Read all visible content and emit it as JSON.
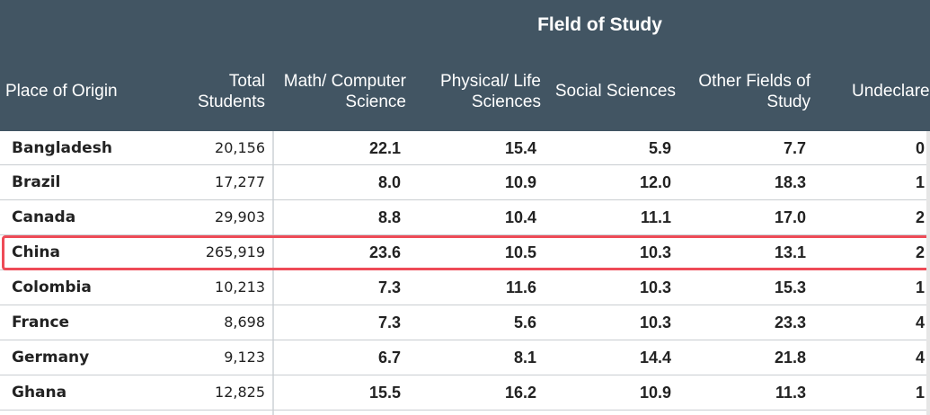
{
  "table": {
    "group_header": "Fleld of Study",
    "columns": [
      "Place of Origin",
      "Total\nStudents",
      "Math/ Computer\nScience",
      "Physical/ Life\nSciences",
      "Social Sciences",
      "Other Fields of\nStudy",
      "Undeclare"
    ],
    "rows": [
      {
        "origin": "Bangladesh",
        "total": "20,156",
        "math": "22.1",
        "physical": "15.4",
        "social": "5.9",
        "other": "7.7",
        "undeclared": "0"
      },
      {
        "origin": "Brazil",
        "total": "17,277",
        "math": "8.0",
        "physical": "10.9",
        "social": "12.0",
        "other": "18.3",
        "undeclared": "1"
      },
      {
        "origin": "Canada",
        "total": "29,903",
        "math": "8.8",
        "physical": "10.4",
        "social": "11.1",
        "other": "17.0",
        "undeclared": "2"
      },
      {
        "origin": "China",
        "total": "265,919",
        "math": "23.6",
        "physical": "10.5",
        "social": "10.3",
        "other": "13.1",
        "undeclared": "2"
      },
      {
        "origin": "Colombia",
        "total": "10,213",
        "math": "7.3",
        "physical": "11.6",
        "social": "10.3",
        "other": "15.3",
        "undeclared": "1"
      },
      {
        "origin": "France",
        "total": "8,698",
        "math": "7.3",
        "physical": "5.6",
        "social": "10.3",
        "other": "23.3",
        "undeclared": "4"
      },
      {
        "origin": "Germany",
        "total": "9,123",
        "math": "6.7",
        "physical": "8.1",
        "social": "14.4",
        "other": "21.8",
        "undeclared": "4"
      },
      {
        "origin": "Ghana",
        "total": "12,825",
        "math": "15.5",
        "physical": "16.2",
        "social": "10.9",
        "other": "11.3",
        "undeclared": "1"
      }
    ],
    "highlighted_row": "China",
    "colors": {
      "header_bg": "#425563",
      "highlight": "#ee4b57",
      "row_border": "#c9cdd1"
    }
  }
}
